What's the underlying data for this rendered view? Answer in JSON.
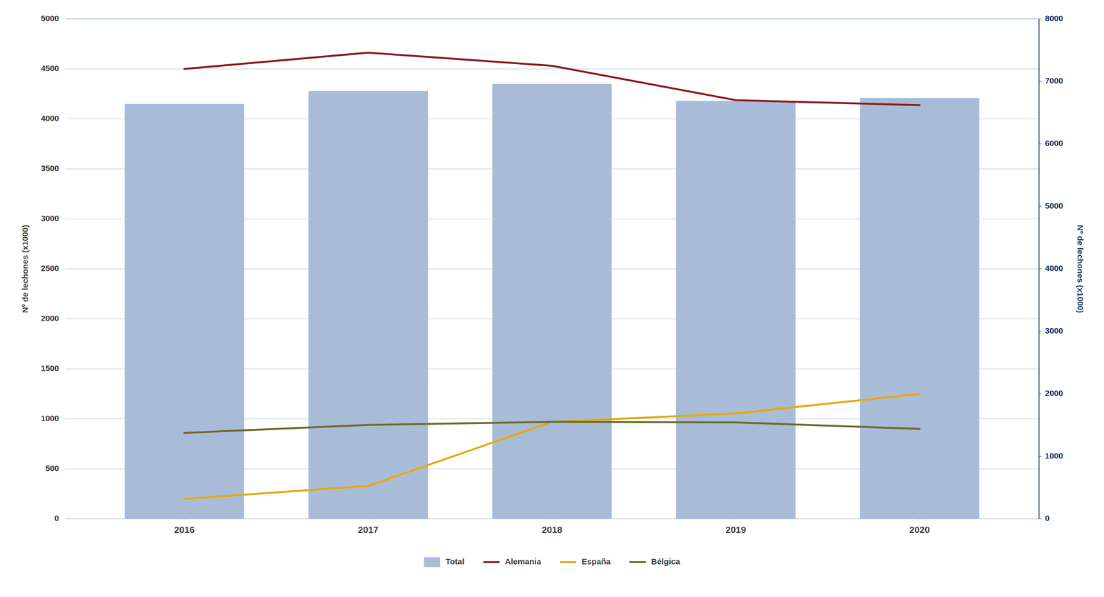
{
  "chart_data": {
    "type": "bar",
    "x": [
      2016,
      2017,
      2018,
      2019,
      2020
    ],
    "xlim": [
      2015.35,
      2020.65
    ],
    "xticks": [
      2016,
      2017,
      2018,
      2019,
      2020
    ],
    "ylabel": "Nº de lechones (x1000)",
    "y2label": "Nº de lechones (x1000)",
    "ylim": [
      0,
      5000
    ],
    "yticks": [
      0,
      500,
      1000,
      1500,
      2000,
      2500,
      3000,
      3500,
      4000,
      4500,
      5000
    ],
    "y2lim": [
      0,
      8000
    ],
    "y2ticks": [
      0,
      1000,
      2000,
      3000,
      4000,
      5000,
      6000,
      7000,
      8000
    ],
    "grid": true,
    "legend": "bottom",
    "series": [
      {
        "name": "Total",
        "type": "bar",
        "color": "#a8bcd8",
        "values": [
          4150,
          4280,
          4350,
          4180,
          4210
        ]
      },
      {
        "name": "Alemania",
        "type": "line",
        "axis": "y2",
        "color": "#8b1a1a",
        "values": [
          7200,
          7460,
          7250,
          6700,
          6620
        ]
      },
      {
        "name": "España",
        "type": "line",
        "color": "#e6a800",
        "values": [
          200,
          330,
          970,
          1055,
          1250
        ]
      },
      {
        "name": "Bélgica",
        "type": "line",
        "color": "#6b6b2a",
        "values": [
          860,
          940,
          970,
          965,
          900
        ]
      }
    ]
  }
}
